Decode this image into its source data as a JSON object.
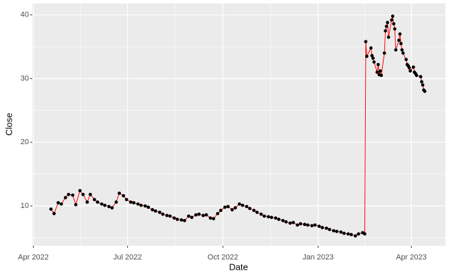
{
  "chart_data": {
    "type": "line",
    "x_label": "Date",
    "y_label": "Close",
    "x": [
      "2022-04-18",
      "2022-04-21",
      "2022-04-25",
      "2022-04-28",
      "2022-05-02",
      "2022-05-05",
      "2022-05-09",
      "2022-05-12",
      "2022-05-16",
      "2022-05-19",
      "2022-05-23",
      "2022-05-26",
      "2022-05-30",
      "2022-06-02",
      "2022-06-06",
      "2022-06-09",
      "2022-06-13",
      "2022-06-16",
      "2022-06-20",
      "2022-06-23",
      "2022-06-27",
      "2022-06-30",
      "2022-07-04",
      "2022-07-07",
      "2022-07-11",
      "2022-07-14",
      "2022-07-18",
      "2022-07-21",
      "2022-07-25",
      "2022-07-28",
      "2022-08-01",
      "2022-08-04",
      "2022-08-08",
      "2022-08-11",
      "2022-08-15",
      "2022-08-18",
      "2022-08-22",
      "2022-08-25",
      "2022-08-29",
      "2022-09-01",
      "2022-09-05",
      "2022-09-08",
      "2022-09-12",
      "2022-09-15",
      "2022-09-19",
      "2022-09-22",
      "2022-09-26",
      "2022-09-29",
      "2022-10-03",
      "2022-10-06",
      "2022-10-10",
      "2022-10-13",
      "2022-10-17",
      "2022-10-20",
      "2022-10-24",
      "2022-10-27",
      "2022-10-31",
      "2022-11-03",
      "2022-11-07",
      "2022-11-10",
      "2022-11-14",
      "2022-11-17",
      "2022-11-21",
      "2022-11-24",
      "2022-11-28",
      "2022-12-01",
      "2022-12-05",
      "2022-12-08",
      "2022-12-12",
      "2022-12-15",
      "2022-12-19",
      "2022-12-22",
      "2022-12-26",
      "2022-12-29",
      "2023-01-02",
      "2023-01-05",
      "2023-01-09",
      "2023-01-12",
      "2023-01-16",
      "2023-01-19",
      "2023-01-23",
      "2023-01-26",
      "2023-01-30",
      "2023-02-02",
      "2023-02-06",
      "2023-02-09",
      "2023-02-13",
      "2023-02-15",
      "2023-02-16",
      "2023-02-17",
      "2023-02-21",
      "2023-02-22",
      "2023-02-23",
      "2023-02-24",
      "2023-02-27",
      "2023-02-28",
      "2023-03-01",
      "2023-03-02",
      "2023-03-03",
      "2023-03-06",
      "2023-03-07",
      "2023-03-08",
      "2023-03-09",
      "2023-03-10",
      "2023-03-13",
      "2023-03-14",
      "2023-03-15",
      "2023-03-16",
      "2023-03-17",
      "2023-03-20",
      "2023-03-21",
      "2023-03-22",
      "2023-03-23",
      "2023-03-24",
      "2023-03-27",
      "2023-03-28",
      "2023-03-29",
      "2023-03-30",
      "2023-03-31",
      "2023-04-03",
      "2023-04-04",
      "2023-04-05",
      "2023-04-06",
      "2023-04-10",
      "2023-04-11",
      "2023-04-12",
      "2023-04-13",
      "2023-04-14"
    ],
    "values": [
      9.5,
      8.8,
      10.5,
      10.3,
      11.3,
      11.8,
      11.7,
      10.2,
      12.4,
      11.8,
      10.6,
      11.8,
      11.0,
      10.6,
      10.3,
      10.1,
      9.9,
      9.7,
      10.6,
      12.0,
      11.6,
      11.0,
      10.6,
      10.5,
      10.3,
      10.1,
      10.0,
      9.8,
      9.4,
      9.2,
      9.0,
      8.7,
      8.5,
      8.4,
      8.1,
      7.9,
      7.8,
      7.7,
      8.4,
      8.2,
      8.6,
      8.7,
      8.5,
      8.6,
      8.1,
      8.0,
      8.8,
      9.3,
      9.8,
      9.9,
      9.4,
      9.7,
      10.3,
      10.1,
      9.9,
      9.6,
      9.3,
      9.0,
      8.7,
      8.4,
      8.3,
      8.2,
      8.1,
      7.9,
      7.7,
      7.5,
      7.3,
      7.4,
      7.0,
      7.2,
      7.1,
      7.0,
      6.9,
      7.0,
      6.8,
      6.6,
      6.5,
      6.3,
      6.1,
      6.0,
      5.9,
      5.7,
      5.6,
      5.5,
      5.3,
      5.6,
      5.8,
      5.6,
      35.8,
      33.5,
      34.8,
      33.6,
      33.2,
      32.6,
      31.0,
      32.2,
      30.6,
      31.2,
      30.5,
      34.0,
      37.5,
      38.2,
      38.8,
      36.5,
      39.2,
      39.8,
      38.6,
      37.8,
      34.5,
      36.0,
      37.0,
      35.5,
      34.5,
      34.0,
      33.0,
      32.2,
      32.0,
      31.7,
      31.2,
      31.8,
      31.0,
      30.8,
      30.5,
      30.3,
      29.5,
      29.0,
      28.2,
      28.0
    ],
    "line_color": "#ff0000",
    "point_color": "#000000",
    "xlim": [
      "2022-03-31",
      "2023-05-04"
    ],
    "xticks": [
      {
        "value": "2022-04-01",
        "label": "Apr 2022"
      },
      {
        "value": "2022-07-01",
        "label": "Jul 2022"
      },
      {
        "value": "2022-10-01",
        "label": "Oct 2022"
      },
      {
        "value": "2023-01-01",
        "label": "Jan 2023"
      },
      {
        "value": "2023-04-01",
        "label": "Apr 2023"
      }
    ],
    "ylim": [
      3.75,
      41.8
    ],
    "yticks": [
      10,
      20,
      30,
      40
    ],
    "grid": true
  }
}
